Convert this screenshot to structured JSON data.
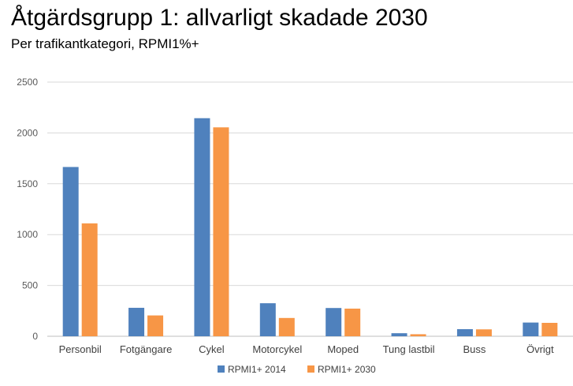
{
  "header": {
    "title": "Åtgärdsgrupp 1: allvarligt skadade 2030",
    "subtitle": "Per trafikantkategori, RPMI1%+"
  },
  "chart_data": {
    "type": "bar",
    "title": "Åtgärdsgrupp 1: allvarligt skadade 2030",
    "subtitle": "Per trafikantkategori, RPMI1%+",
    "categories": [
      "Personbil",
      "Fotgängare",
      "Cykel",
      "Motorcykel",
      "Moped",
      "Tung lastbil",
      "Buss",
      "Övrigt"
    ],
    "series": [
      {
        "name": "RPMI1+ 2014",
        "color": "#4f81bd",
        "values": [
          1665,
          280,
          2145,
          325,
          278,
          30,
          70,
          135
        ]
      },
      {
        "name": "RPMI1+ 2030",
        "color": "#f79646",
        "values": [
          1110,
          205,
          2055,
          180,
          272,
          20,
          68,
          132
        ]
      }
    ],
    "ylim": [
      0,
      2500
    ],
    "yticks": [
      "0",
      "500",
      "1000",
      "1500",
      "2000",
      "2500"
    ],
    "grid": true,
    "legend_position": "bottom"
  }
}
